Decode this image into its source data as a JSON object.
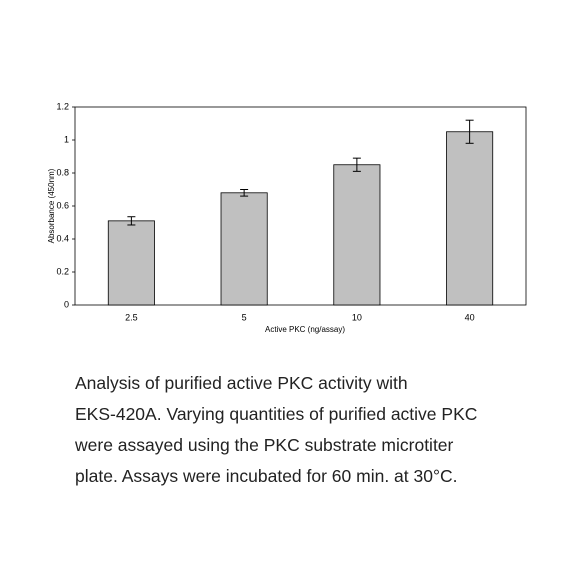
{
  "chart_data": {
    "type": "bar",
    "categories": [
      "2.5",
      "5",
      "10",
      "40"
    ],
    "values": [
      0.51,
      0.68,
      0.85,
      1.05
    ],
    "errors": [
      0.025,
      0.02,
      0.04,
      0.07
    ],
    "color": "#c0c0c0",
    "ylim": [
      0,
      1.2
    ],
    "yticks": [
      0,
      0.2,
      0.4,
      0.6,
      0.8,
      1,
      1.2
    ],
    "grid": false,
    "x_label": "Active PKC (ng/assay)",
    "y_label": "Absorbance (450nm)"
  },
  "caption": [
    "Analysis of purified active PKC activity with",
    "EKS-420A.  Varying quantities of purified active PKC",
    "were assayed using the PKC substrate microtiter",
    "plate.  Assays were incubated for 60 min. at 30°C."
  ]
}
